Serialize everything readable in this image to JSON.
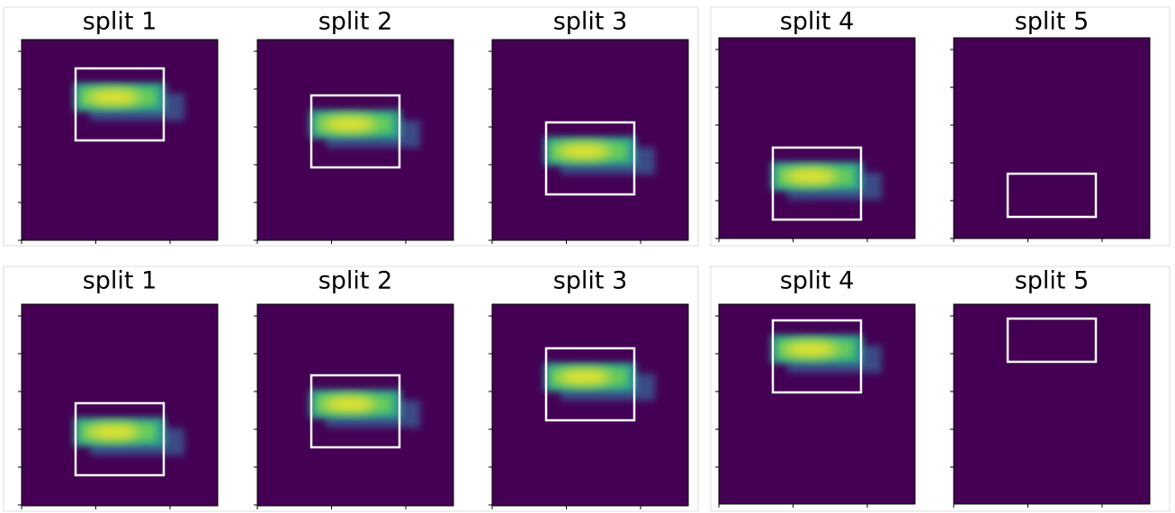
{
  "rows": [
    {
      "groups": [
        {
          "panels": [
            {
              "title": "split 1"
            },
            {
              "title": "split 2"
            },
            {
              "title": "split 3"
            }
          ]
        },
        {
          "panels": [
            {
              "title": "split 4"
            },
            {
              "title": "split 5"
            }
          ]
        }
      ]
    },
    {
      "groups": [
        {
          "panels": [
            {
              "title": "split 1"
            },
            {
              "title": "split 2"
            },
            {
              "title": "split 3"
            }
          ]
        },
        {
          "panels": [
            {
              "title": "split 4"
            },
            {
              "title": "split 5"
            }
          ]
        }
      ]
    }
  ]
}
